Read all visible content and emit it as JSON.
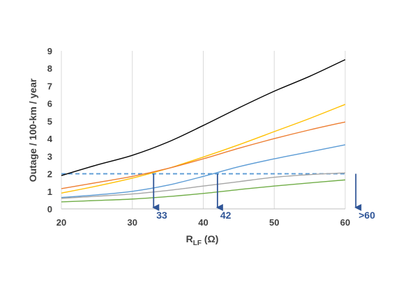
{
  "chart_data": {
    "type": "line",
    "title": "",
    "xlabel": "R",
    "xlabel_subscript": "LF",
    "xlabel_unit": " (Ω)",
    "ylabel": "Outage / 100-km / year",
    "xlim": [
      20,
      60
    ],
    "ylim": [
      0,
      9
    ],
    "x_ticks": [
      "20",
      "30",
      "40",
      "50",
      "60"
    ],
    "y_ticks": [
      "0",
      "1",
      "2",
      "3",
      "4",
      "5",
      "6",
      "7",
      "8",
      "9"
    ],
    "grid": "vertical",
    "legend": "none",
    "x": [
      20,
      25,
      30,
      35,
      40,
      45,
      50,
      55,
      60
    ],
    "series": [
      {
        "color": "#000000",
        "values": [
          1.9,
          2.5,
          3.05,
          3.8,
          4.75,
          5.75,
          6.7,
          7.55,
          8.5
        ]
      },
      {
        "color": "#FFC000",
        "values": [
          0.9,
          1.3,
          1.75,
          2.3,
          2.95,
          3.65,
          4.4,
          5.15,
          5.95
        ]
      },
      {
        "color": "#ED7D31",
        "values": [
          1.15,
          1.5,
          1.85,
          2.3,
          2.85,
          3.45,
          4.0,
          4.5,
          4.95
        ]
      },
      {
        "color": "#5B9BD5",
        "values": [
          0.65,
          0.8,
          1.0,
          1.35,
          1.85,
          2.4,
          2.85,
          3.25,
          3.65
        ]
      },
      {
        "color": "#A5A5A5",
        "values": [
          0.6,
          0.72,
          0.85,
          1.05,
          1.3,
          1.55,
          1.8,
          1.95,
          2.05
        ]
      },
      {
        "color": "#70AD47",
        "values": [
          0.4,
          0.48,
          0.56,
          0.7,
          0.88,
          1.1,
          1.3,
          1.48,
          1.65
        ]
      }
    ],
    "threshold": {
      "value": 2.0,
      "color": "#5B9BD5",
      "style": "dashed"
    },
    "annotations": [
      {
        "x": 33,
        "label": "33",
        "color": "#2F5597"
      },
      {
        "x": 42,
        "label": "42",
        "color": "#2F5597"
      },
      {
        "x": 61.5,
        "label": ">60",
        "color": "#2F5597"
      }
    ]
  }
}
